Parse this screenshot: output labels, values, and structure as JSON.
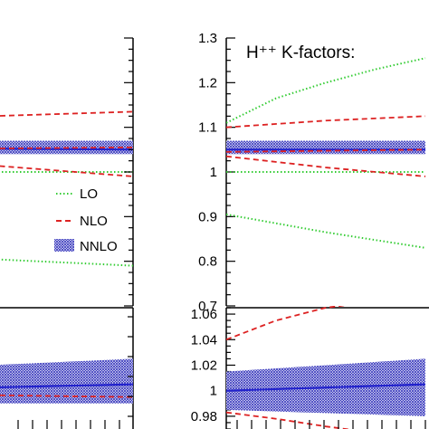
{
  "chart_data": [
    {
      "type": "line",
      "panel": "left-main",
      "xlim": [
        0,
        1
      ],
      "ylim": [
        0.7,
        1.3
      ],
      "series": [
        {
          "name": "LO",
          "style": "dotted",
          "color": "#33cc33",
          "band": "upper",
          "x": [
            0,
            1
          ],
          "y": [
            1.26,
            1.36
          ]
        },
        {
          "name": "LO",
          "style": "dotted",
          "color": "#33cc33",
          "band": "central",
          "x": [
            0,
            1
          ],
          "y": [
            1.0,
            1.0
          ]
        },
        {
          "name": "LO",
          "style": "dotted",
          "color": "#33cc33",
          "band": "lower",
          "x": [
            0,
            1
          ],
          "y": [
            0.82,
            0.79
          ]
        },
        {
          "name": "NLO",
          "style": "dashed",
          "color": "#dd2222",
          "band": "upper",
          "x": [
            0,
            0.5,
            1
          ],
          "y": [
            1.12,
            1.125,
            1.135
          ]
        },
        {
          "name": "NLO",
          "style": "dashed",
          "color": "#dd2222",
          "band": "central",
          "x": [
            0,
            1
          ],
          "y": [
            1.05,
            1.055
          ]
        },
        {
          "name": "NLO",
          "style": "dashed",
          "color": "#dd2222",
          "band": "lower",
          "x": [
            0,
            1
          ],
          "y": [
            1.04,
            0.99
          ]
        },
        {
          "name": "NNLO",
          "style": "band",
          "color": "#3333bb",
          "x": [
            0,
            1
          ],
          "y_low": [
            1.04,
            1.04
          ],
          "y_high": [
            1.07,
            1.07
          ],
          "y": [
            1.055,
            1.05
          ]
        }
      ]
    },
    {
      "type": "line",
      "panel": "right-main",
      "title": "H⁺⁺ K-factors:",
      "xlim": [
        0,
        1
      ],
      "ylim": [
        0.7,
        1.3
      ],
      "y_ticks": [
        "0.7",
        "0.8",
        "0.9",
        "1",
        "1.1",
        "1.2",
        "1.3"
      ],
      "series": [
        {
          "name": "LO",
          "style": "dotted",
          "color": "#33cc33",
          "band": "upper",
          "x": [
            0,
            0.25,
            0.5,
            0.75,
            1
          ],
          "y": [
            1.11,
            1.165,
            1.2,
            1.23,
            1.255
          ]
        },
        {
          "name": "LO",
          "style": "dotted",
          "color": "#33cc33",
          "band": "central",
          "x": [
            0,
            1
          ],
          "y": [
            1.0,
            1.0
          ]
        },
        {
          "name": "LO",
          "style": "dotted",
          "color": "#33cc33",
          "band": "lower",
          "x": [
            0,
            0.5,
            1
          ],
          "y": [
            0.905,
            0.865,
            0.83
          ]
        },
        {
          "name": "NLO",
          "style": "dashed",
          "color": "#dd2222",
          "band": "upper",
          "x": [
            0,
            0.5,
            1
          ],
          "y": [
            1.1,
            1.115,
            1.125
          ]
        },
        {
          "name": "NLO",
          "style": "dashed",
          "color": "#dd2222",
          "band": "central",
          "x": [
            0,
            1
          ],
          "y": [
            1.045,
            1.05
          ]
        },
        {
          "name": "NLO",
          "style": "dashed",
          "color": "#dd2222",
          "band": "lower",
          "x": [
            0,
            0.5,
            1
          ],
          "y": [
            1.035,
            1.01,
            0.99
          ]
        },
        {
          "name": "NNLO",
          "style": "band",
          "color": "#3333bb",
          "x": [
            0,
            1
          ],
          "y_low": [
            1.04,
            1.04
          ],
          "y_high": [
            1.07,
            1.07
          ],
          "y": [
            1.05,
            1.05
          ]
        }
      ]
    },
    {
      "type": "line",
      "panel": "left-ratio",
      "xlim": [
        0,
        1
      ],
      "ylim": [
        0.97,
        1.065
      ],
      "series": [
        {
          "name": "NNLO",
          "style": "band",
          "color": "#3333bb",
          "x": [
            0,
            1
          ],
          "y_low": [
            0.99,
            0.99
          ],
          "y_high": [
            1.015,
            1.025
          ],
          "y": [
            1.0,
            1.005
          ]
        },
        {
          "name": "NLO",
          "style": "dashed",
          "color": "#dd2222",
          "band": "lower",
          "x": [
            0,
            1
          ],
          "y": [
            0.998,
            0.995
          ]
        }
      ]
    },
    {
      "type": "line",
      "panel": "right-ratio",
      "xlim": [
        0,
        1
      ],
      "ylim": [
        0.97,
        1.065
      ],
      "y_ticks": [
        "0.98",
        "1",
        "1.02",
        "1.04",
        "1.06"
      ],
      "series": [
        {
          "name": "NNLO",
          "style": "band",
          "color": "#3333bb",
          "x": [
            0,
            1
          ],
          "y_low": [
            0.985,
            0.98
          ],
          "y_high": [
            1.015,
            1.025
          ],
          "y": [
            1.0,
            1.005
          ]
        },
        {
          "name": "NLO",
          "style": "dashed",
          "color": "#dd2222",
          "band": "upper",
          "x": [
            0,
            0.25,
            0.5,
            1
          ],
          "y": [
            1.04,
            1.055,
            1.065,
            1.075
          ]
        },
        {
          "name": "NLO",
          "style": "dashed",
          "color": "#dd2222",
          "band": "lower",
          "x": [
            0,
            0.25,
            0.5,
            1
          ],
          "y": [
            0.983,
            0.978,
            0.972,
            0.962
          ]
        }
      ]
    }
  ],
  "legend": [
    {
      "label": "LO",
      "style": "dotted",
      "color": "#33cc33"
    },
    {
      "label": "NLO",
      "style": "dashed",
      "color": "#dd2222"
    },
    {
      "label": "NNLO",
      "style": "band",
      "color": "#3333bb"
    }
  ]
}
